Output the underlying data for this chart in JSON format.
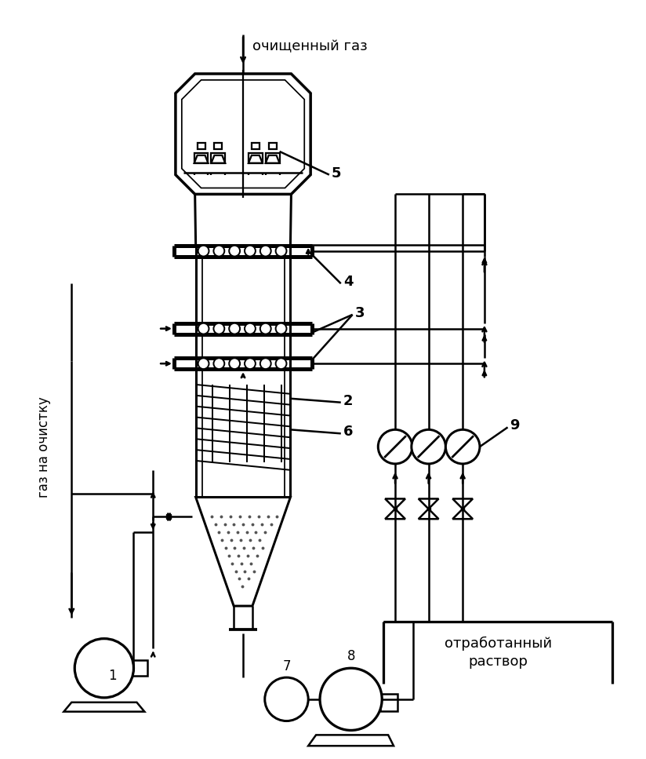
{
  "background_color": "#ffffff",
  "line_color": "#000000",
  "lw": 1.8,
  "labels": {
    "cleaned_gas": "очищенный газ",
    "gas_to_clean": "газ на очистку",
    "waste_solution": "отработанный\nраствор",
    "num1": "1",
    "num2": "2",
    "num3": "3",
    "num4": "4",
    "num5": "5",
    "num6": "6",
    "num7": "7",
    "num8": "8",
    "num9": "9"
  },
  "figsize": [
    8.24,
    9.67
  ],
  "dpi": 100
}
